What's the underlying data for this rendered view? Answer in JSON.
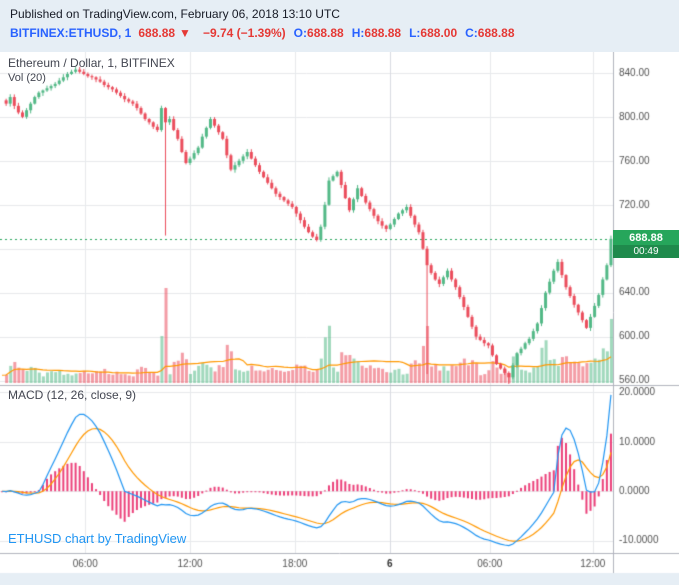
{
  "header": {
    "published_line": "Published on TradingView.com, February 06, 2018 13:10 UTC",
    "symbol": "BITFINEX:ETHUSD, 1",
    "last_price": "688.88",
    "change_arrow": "▼",
    "change": "−9.74 (−1.39%)",
    "ohlc": [
      {
        "label": "O:",
        "value": "688.88"
      },
      {
        "label": "H:",
        "value": "688.88"
      },
      {
        "label": "L:",
        "value": "688.00"
      },
      {
        "label": "C:",
        "value": "688.88"
      }
    ]
  },
  "chart": {
    "legend_title": "Ethereum / Dollar, 1, BITFINEX",
    "legend_volume": "Vol (20)",
    "macd_legend": "MACD (12, 26, close, 9)",
    "attribution": "ETHUSD chart by TradingView",
    "price_badge": {
      "price": "688.88",
      "countdown": "00:49"
    }
  },
  "chart_data": {
    "type": "candlestick",
    "title": "Ethereum / Dollar, 1, BITFINEX",
    "interval": "1",
    "last_price": 688.88,
    "closes": [
      815,
      812,
      818,
      810,
      804,
      800,
      806,
      812,
      818,
      822,
      824,
      826,
      828,
      830,
      833,
      836,
      839,
      841,
      843,
      841,
      839,
      837,
      836,
      834,
      832,
      829,
      827,
      825,
      822,
      819,
      816,
      814,
      812,
      808,
      803,
      798,
      795,
      791,
      788,
      808,
      795,
      798,
      788,
      780,
      768,
      758,
      762,
      767,
      772,
      782,
      790,
      798,
      792,
      786,
      780,
      765,
      752,
      756,
      760,
      764,
      768,
      762,
      756,
      750,
      745,
      740,
      735,
      730,
      727,
      724,
      721,
      718,
      712,
      706,
      700,
      695,
      691,
      688,
      700,
      720,
      742,
      746,
      750,
      738,
      726,
      715,
      725,
      735,
      728,
      722,
      716,
      710,
      705,
      701,
      698,
      702,
      707,
      712,
      715,
      718,
      710,
      702,
      695,
      680,
      665,
      658,
      652,
      648,
      654,
      660,
      652,
      645,
      636,
      627,
      618,
      609,
      600,
      597,
      594,
      592,
      583,
      575,
      571,
      567,
      563,
      574,
      585,
      589,
      594,
      598,
      605,
      612,
      626,
      640,
      650,
      660,
      668,
      656,
      645,
      637,
      629,
      622,
      615,
      608,
      618,
      628,
      638,
      652,
      665,
      689
    ],
    "wick_overrides": [
      {
        "index": 40,
        "low": 692
      },
      {
        "index": 104,
        "low": 566
      },
      {
        "index": 124,
        "low": 557
      }
    ],
    "price_axis": {
      "min": 556,
      "max": 859,
      "tick_labels": [
        "840.00",
        "800.00",
        "760.00",
        "720.00",
        "640.00",
        "600.00",
        "560.00"
      ],
      "tick_values": [
        840,
        800,
        760,
        720,
        640,
        600,
        560
      ],
      "gridlines": [
        840,
        800,
        760,
        720,
        680,
        640,
        600,
        560
      ]
    },
    "time_axis": {
      "ticks": [
        {
          "label": "06:00",
          "pos": 0.139
        },
        {
          "label": "12:00",
          "pos": 0.31
        },
        {
          "label": "18:00",
          "pos": 0.481
        },
        {
          "label": "6",
          "pos": 0.636,
          "major": true
        },
        {
          "label": "06:00",
          "pos": 0.799
        },
        {
          "label": "12:00",
          "pos": 0.967
        }
      ]
    },
    "volume": {
      "label": "Vol (20)",
      "ma_period": 20,
      "spikes": [
        {
          "index": 40,
          "value": 1.0
        },
        {
          "index": 104,
          "value": 0.6
        },
        {
          "index": 133,
          "value": 0.45
        }
      ]
    },
    "macd": {
      "label": "MACD (12, 26, close, 9)",
      "fast": 12,
      "slow": 26,
      "source": "close",
      "signal": 9,
      "tick_labels": [
        "20.0000",
        "10.0000",
        "0.0000",
        "-10.0000"
      ],
      "tick_values": [
        20,
        10,
        0,
        -10
      ],
      "range": [
        -12.5,
        21.5
      ],
      "observed_max": 20,
      "observed_min": -11
    },
    "countdown": "00:49",
    "colors": {
      "up": "#53b987",
      "down": "#eb4d5c",
      "vol_up": "rgba(83,185,135,0.55)",
      "vol_down": "rgba(235,77,92,0.55)",
      "vol_ma": "#ff9800",
      "macd_line": "#2196f3",
      "macd_signal": "#ff9800",
      "macd_hist": "#ec407a",
      "badge_bg": "#26a65b",
      "badge_cd_bg": "#1f8a4c",
      "dashed": "#26a65b",
      "grid": "#e8e9ec",
      "grid_major": "#d9dbe2",
      "separator": "#b2b5be",
      "axis_text": "#555555",
      "time_major_text": "#333333",
      "frame": "#e6eef5",
      "link": "#2196f3",
      "header_symbol": "#2962ff",
      "header_red": "#e53935"
    }
  }
}
